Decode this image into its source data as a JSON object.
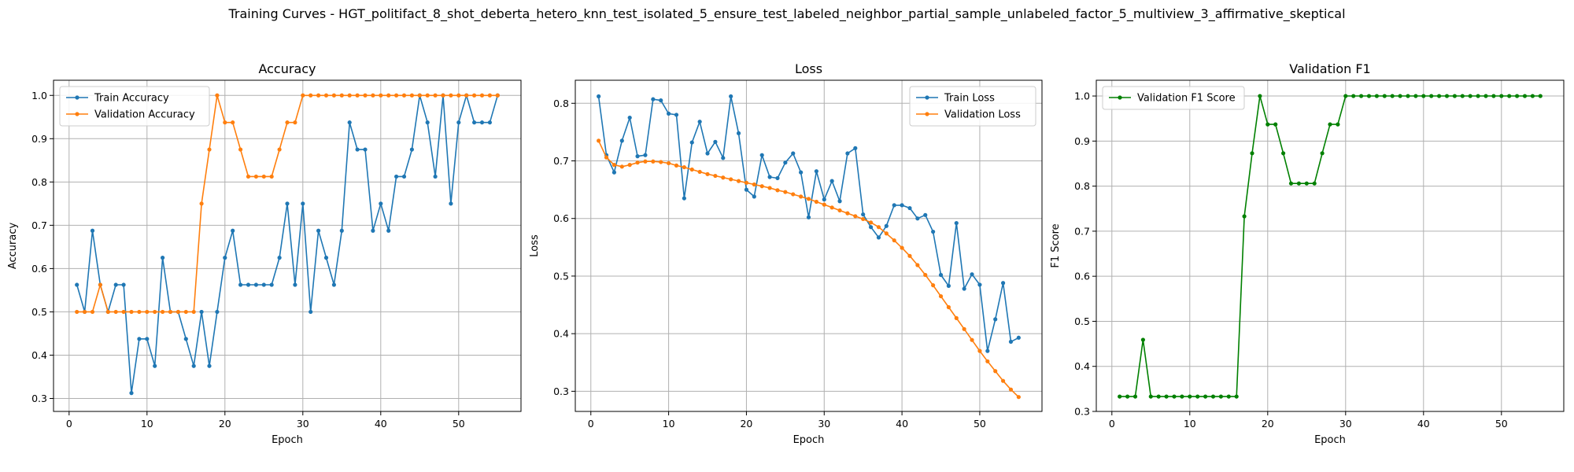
{
  "suptitle": "Training Curves - HGT_politifact_8_shot_deberta_hetero_knn_test_isolated_5_ensure_test_labeled_neighbor_partial_sample_unlabeled_factor_5_multiview_3_affirmative_skeptical",
  "colors": {
    "blue": "#1f77b4",
    "orange": "#ff7f0e",
    "green": "#008000",
    "grid": "#b0b0b0"
  },
  "chart_data": [
    {
      "type": "line",
      "title": "Accuracy",
      "xlabel": "Epoch",
      "ylabel": "Accuracy",
      "xlim": [
        -2,
        58
      ],
      "ylim": [
        0.27,
        1.035
      ],
      "xticks": [
        0,
        10,
        20,
        30,
        40,
        50
      ],
      "yticks": [
        0.3,
        0.4,
        0.5,
        0.6,
        0.7,
        0.8,
        0.9,
        1.0
      ],
      "grid": true,
      "legend_position": "upper left",
      "series": [
        {
          "name": "Train Accuracy",
          "color": "#1f77b4",
          "x": [
            1,
            2,
            3,
            4,
            5,
            6,
            7,
            8,
            9,
            10,
            11,
            12,
            13,
            14,
            15,
            16,
            17,
            18,
            19,
            20,
            21,
            22,
            23,
            24,
            25,
            26,
            27,
            28,
            29,
            30,
            31,
            32,
            33,
            34,
            35,
            36,
            37,
            38,
            39,
            40,
            41,
            42,
            43,
            44,
            45,
            46,
            47,
            48,
            49,
            50,
            51,
            52,
            53,
            54,
            55
          ],
          "values": [
            0.5625,
            0.5,
            0.6875,
            0.5625,
            0.5,
            0.5625,
            0.5625,
            0.3125,
            0.4375,
            0.4375,
            0.375,
            0.625,
            0.5,
            0.5,
            0.4375,
            0.375,
            0.5,
            0.375,
            0.5,
            0.625,
            0.6875,
            0.5625,
            0.5625,
            0.5625,
            0.5625,
            0.5625,
            0.625,
            0.75,
            0.5625,
            0.75,
            0.5,
            0.6875,
            0.625,
            0.5625,
            0.6875,
            0.9375,
            0.875,
            0.875,
            0.6875,
            0.75,
            0.6875,
            0.8125,
            0.8125,
            0.875,
            1.0,
            0.9375,
            0.8125,
            1.0,
            0.75,
            0.9375,
            1.0,
            0.9375,
            0.9375,
            0.9375,
            1.0
          ]
        },
        {
          "name": "Validation Accuracy",
          "color": "#ff7f0e",
          "x": [
            1,
            2,
            3,
            4,
            5,
            6,
            7,
            8,
            9,
            10,
            11,
            12,
            13,
            14,
            15,
            16,
            17,
            18,
            19,
            20,
            21,
            22,
            23,
            24,
            25,
            26,
            27,
            28,
            29,
            30,
            31,
            32,
            33,
            34,
            35,
            36,
            37,
            38,
            39,
            40,
            41,
            42,
            43,
            44,
            45,
            46,
            47,
            48,
            49,
            50,
            51,
            52,
            53,
            54,
            55
          ],
          "values": [
            0.5,
            0.5,
            0.5,
            0.5625,
            0.5,
            0.5,
            0.5,
            0.5,
            0.5,
            0.5,
            0.5,
            0.5,
            0.5,
            0.5,
            0.5,
            0.5,
            0.75,
            0.875,
            1.0,
            0.9375,
            0.9375,
            0.875,
            0.8125,
            0.8125,
            0.8125,
            0.8125,
            0.875,
            0.9375,
            0.9375,
            1.0,
            1.0,
            1.0,
            1.0,
            1.0,
            1.0,
            1.0,
            1.0,
            1.0,
            1.0,
            1.0,
            1.0,
            1.0,
            1.0,
            1.0,
            1.0,
            1.0,
            1.0,
            1.0,
            1.0,
            1.0,
            1.0,
            1.0,
            1.0,
            1.0,
            1.0
          ]
        }
      ]
    },
    {
      "type": "line",
      "title": "Loss",
      "xlabel": "Epoch",
      "ylabel": "Loss",
      "xlim": [
        -2,
        58
      ],
      "ylim": [
        0.265,
        0.84
      ],
      "xticks": [
        0,
        10,
        20,
        30,
        40,
        50
      ],
      "yticks": [
        0.3,
        0.4,
        0.5,
        0.6,
        0.7,
        0.8
      ],
      "grid": true,
      "legend_position": "upper right",
      "series": [
        {
          "name": "Train Loss",
          "color": "#1f77b4",
          "x": [
            1,
            2,
            3,
            4,
            5,
            6,
            7,
            8,
            9,
            10,
            11,
            12,
            13,
            14,
            15,
            16,
            17,
            18,
            19,
            20,
            21,
            22,
            23,
            24,
            25,
            26,
            27,
            28,
            29,
            30,
            31,
            32,
            33,
            34,
            35,
            36,
            37,
            38,
            39,
            40,
            41,
            42,
            43,
            44,
            45,
            46,
            47,
            48,
            49,
            50,
            51,
            52,
            53,
            54,
            55
          ],
          "values": [
            0.812,
            0.71,
            0.68,
            0.735,
            0.775,
            0.708,
            0.71,
            0.807,
            0.805,
            0.782,
            0.78,
            0.635,
            0.732,
            0.768,
            0.713,
            0.733,
            0.705,
            0.812,
            0.748,
            0.65,
            0.638,
            0.71,
            0.672,
            0.67,
            0.697,
            0.713,
            0.68,
            0.602,
            0.682,
            0.633,
            0.665,
            0.63,
            0.713,
            0.722,
            0.607,
            0.585,
            0.567,
            0.587,
            0.623,
            0.623,
            0.618,
            0.6,
            0.606,
            0.577,
            0.502,
            0.483,
            0.592,
            0.478,
            0.503,
            0.485,
            0.37,
            0.425,
            0.488,
            0.386,
            0.393
          ]
        },
        {
          "name": "Validation Loss",
          "color": "#ff7f0e",
          "x": [
            1,
            2,
            3,
            4,
            5,
            6,
            7,
            8,
            9,
            10,
            11,
            12,
            13,
            14,
            15,
            16,
            17,
            18,
            19,
            20,
            21,
            22,
            23,
            24,
            25,
            26,
            27,
            28,
            29,
            30,
            31,
            32,
            33,
            34,
            35,
            36,
            37,
            38,
            39,
            40,
            41,
            42,
            43,
            44,
            45,
            46,
            47,
            48,
            49,
            50,
            51,
            52,
            53,
            54,
            55
          ],
          "values": [
            0.735,
            0.706,
            0.693,
            0.69,
            0.693,
            0.697,
            0.699,
            0.699,
            0.698,
            0.696,
            0.692,
            0.689,
            0.685,
            0.681,
            0.677,
            0.674,
            0.671,
            0.668,
            0.665,
            0.662,
            0.659,
            0.656,
            0.653,
            0.649,
            0.646,
            0.642,
            0.638,
            0.634,
            0.629,
            0.624,
            0.619,
            0.614,
            0.609,
            0.604,
            0.599,
            0.593,
            0.585,
            0.574,
            0.562,
            0.549,
            0.535,
            0.519,
            0.502,
            0.484,
            0.465,
            0.446,
            0.427,
            0.408,
            0.389,
            0.37,
            0.352,
            0.335,
            0.318,
            0.303,
            0.29
          ]
        }
      ]
    },
    {
      "type": "line",
      "title": "Validation F1",
      "xlabel": "Epoch",
      "ylabel": "F1 Score",
      "xlim": [
        -2,
        58
      ],
      "ylim": [
        0.3,
        1.035
      ],
      "xticks": [
        0,
        10,
        20,
        30,
        40,
        50
      ],
      "yticks": [
        0.3,
        0.4,
        0.5,
        0.6,
        0.7,
        0.8,
        0.9,
        1.0
      ],
      "grid": true,
      "legend_position": "upper left",
      "series": [
        {
          "name": "Validation F1 Score",
          "color": "#008000",
          "x": [
            1,
            2,
            3,
            4,
            5,
            6,
            7,
            8,
            9,
            10,
            11,
            12,
            13,
            14,
            15,
            16,
            17,
            18,
            19,
            20,
            21,
            22,
            23,
            24,
            25,
            26,
            27,
            28,
            29,
            30,
            31,
            32,
            33,
            34,
            35,
            36,
            37,
            38,
            39,
            40,
            41,
            42,
            43,
            44,
            45,
            46,
            47,
            48,
            49,
            50,
            51,
            52,
            53,
            54,
            55
          ],
          "values": [
            0.333,
            0.333,
            0.333,
            0.459,
            0.333,
            0.333,
            0.333,
            0.333,
            0.333,
            0.333,
            0.333,
            0.333,
            0.333,
            0.333,
            0.333,
            0.333,
            0.733,
            0.873,
            1.0,
            0.937,
            0.937,
            0.873,
            0.806,
            0.806,
            0.806,
            0.806,
            0.873,
            0.937,
            0.937,
            1.0,
            1.0,
            1.0,
            1.0,
            1.0,
            1.0,
            1.0,
            1.0,
            1.0,
            1.0,
            1.0,
            1.0,
            1.0,
            1.0,
            1.0,
            1.0,
            1.0,
            1.0,
            1.0,
            1.0,
            1.0,
            1.0,
            1.0,
            1.0,
            1.0,
            1.0
          ]
        }
      ]
    }
  ]
}
